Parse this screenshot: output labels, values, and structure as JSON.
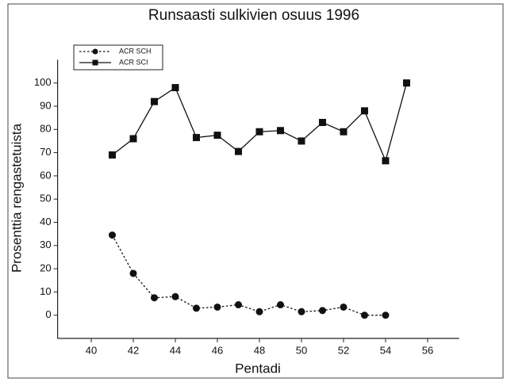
{
  "chart_data": {
    "type": "line",
    "title": "Runsaasti sulkivien osuus 1996",
    "x_label": "Pentadi",
    "y_label": "Prosenttia rengastetuista",
    "x": [
      41,
      42,
      43,
      44,
      45,
      46,
      47,
      48,
      49,
      50,
      51,
      52,
      53,
      54,
      55
    ],
    "series": [
      {
        "name": "ACR SCH",
        "color": "#111111",
        "marker": "circle",
        "dash": "dotted",
        "values": [
          34.5,
          18,
          7.5,
          8,
          3,
          3.5,
          4.5,
          1.5,
          4.5,
          1.5,
          2,
          3.5,
          0,
          0,
          null
        ]
      },
      {
        "name": "ACR SCI",
        "color": "#111111",
        "marker": "square",
        "dash": "solid",
        "values": [
          69,
          76,
          92,
          98,
          76.5,
          77.5,
          70.5,
          79,
          79.5,
          75,
          83,
          79,
          88,
          66.5,
          100
        ]
      }
    ],
    "xlim": [
      38.4,
      57.5
    ],
    "ylim": [
      -10,
      110
    ],
    "xticks": [
      40,
      42,
      44,
      46,
      48,
      50,
      52,
      54,
      56
    ],
    "yticks": [
      0,
      10,
      20,
      30,
      40,
      50,
      60,
      70,
      80,
      90,
      100
    ],
    "legend": "upper left",
    "grid": false
  }
}
